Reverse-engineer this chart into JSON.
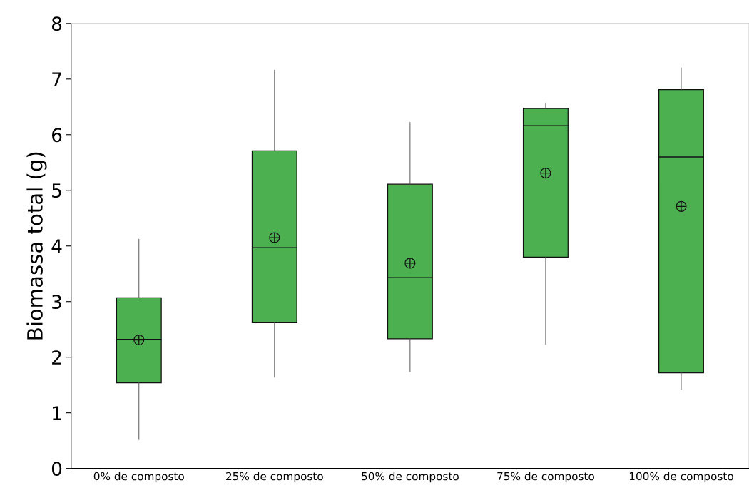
{
  "chart_data": {
    "type": "box",
    "ylabel": "Biomassa total (g)",
    "categories": [
      "0% de composto",
      "25% de composto",
      "50% de composto",
      "75% de composto",
      "100% de composto"
    ],
    "boxes": [
      {
        "low": 0.52,
        "q1": 1.54,
        "median": 2.32,
        "q3": 3.07,
        "high": 4.12,
        "mean": 2.31
      },
      {
        "low": 1.64,
        "q1": 2.62,
        "median": 3.97,
        "q3": 5.71,
        "high": 7.16,
        "mean": 4.15
      },
      {
        "low": 1.74,
        "q1": 2.33,
        "median": 3.43,
        "q3": 5.11,
        "high": 6.22,
        "mean": 3.69
      },
      {
        "low": 2.23,
        "q1": 3.8,
        "median": 6.16,
        "q3": 6.47,
        "high": 6.57,
        "mean": 5.31
      },
      {
        "low": 1.42,
        "q1": 1.72,
        "median": 5.6,
        "q3": 6.81,
        "high": 7.2,
        "mean": 4.71
      }
    ],
    "color": "#4caf50",
    "ylim": [
      0,
      8
    ],
    "yticks": [
      0,
      1,
      2,
      3,
      4,
      5,
      6,
      7,
      8
    ],
    "grid": false
  }
}
